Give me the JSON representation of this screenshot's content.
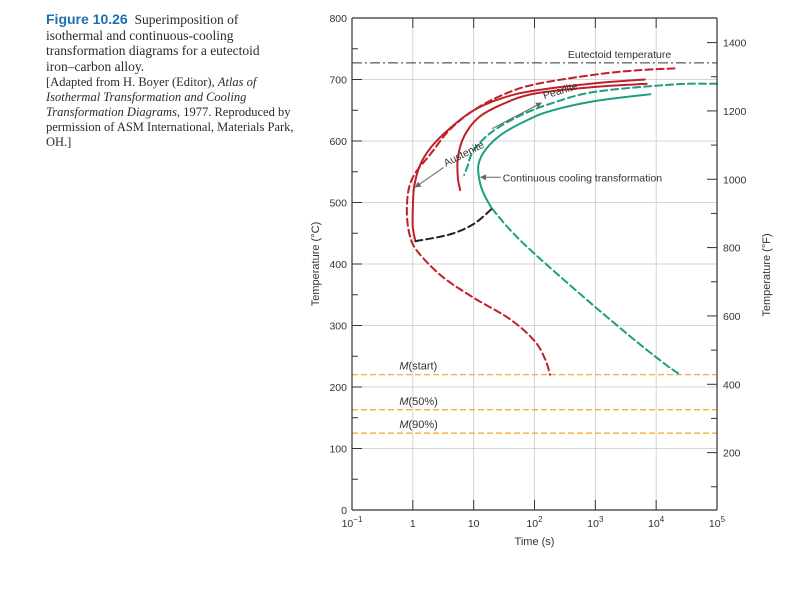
{
  "caption": {
    "figure_label": "Figure 10.26",
    "title_lines": [
      "Superimposition of",
      "isothermal and continuous-cooling",
      "transformation diagrams for a eutectoid",
      "iron–carbon alloy."
    ],
    "source_prefix": "[Adapted from H. Boyer (Editor), ",
    "source_italic": "Atlas of Isothermal Transformation and Cooling Transformation Diagrams,",
    "source_suffix": " 1977. Reproduced by permission of ASM International, Materials Park, OH.]"
  },
  "chart_data": {
    "type": "line",
    "xlabel": "Time (s)",
    "ylabel_left": "Temperature (°C)",
    "ylabel_right": "Temperature (°F)",
    "x_scale": "log",
    "xlim": [
      0.1,
      100000
    ],
    "ylim": [
      0,
      800
    ],
    "x_ticks": [
      {
        "value": 0.1,
        "base": "10",
        "exp": "−1"
      },
      {
        "value": 1,
        "base": "1",
        "exp": ""
      },
      {
        "value": 10,
        "base": "10",
        "exp": ""
      },
      {
        "value": 100,
        "base": "10",
        "exp": "2"
      },
      {
        "value": 1000,
        "base": "10",
        "exp": "3"
      },
      {
        "value": 10000,
        "base": "10",
        "exp": "4"
      },
      {
        "value": 100000,
        "base": "10",
        "exp": "5"
      }
    ],
    "y_ticks_left": [
      "0",
      "100",
      "200",
      "300",
      "400",
      "500",
      "600",
      "700",
      "800"
    ],
    "y_ticks_right": [
      {
        "label": "200",
        "value_c": 93.3
      },
      {
        "label": "400",
        "value_c": 204.4
      },
      {
        "label": "600",
        "value_c": 315.6
      },
      {
        "label": "800",
        "value_c": 426.7
      },
      {
        "label": "1000",
        "value_c": 537.8
      },
      {
        "label": "1200",
        "value_c": 648.9
      },
      {
        "label": "1400",
        "value_c": 760
      }
    ],
    "grid": true,
    "colors": {
      "isothermal": "#c0202a",
      "continuous": "#1a9f82",
      "martensite": "#f5a623",
      "black": "#222222",
      "grid": "#c8c8c8",
      "axis": "#333333"
    },
    "eutectoid": {
      "label": "Eutectoid temperature",
      "temperature": 727
    },
    "martensite_lines": [
      {
        "label": "M(start)",
        "temperature": 220
      },
      {
        "label": "M(50%)",
        "temperature": 163
      },
      {
        "label": "M(90%)",
        "temperature": 125
      }
    ],
    "annotations": [
      {
        "label": "Pearlite"
      },
      {
        "label": "Austenite"
      },
      {
        "label": "Continuous cooling transformation"
      }
    ],
    "series": [
      {
        "id": "iso-start-dashed",
        "dashed": true,
        "color_key": "isothermal",
        "points": [
          [
            20000,
            718
          ],
          [
            5000,
            715
          ],
          [
            1000,
            708
          ],
          [
            100,
            692
          ],
          [
            30,
            675
          ],
          [
            10,
            650
          ],
          [
            4,
            618
          ],
          [
            2,
            580
          ],
          [
            1.1,
            548
          ],
          [
            0.85,
            520
          ],
          [
            0.8,
            480
          ],
          [
            0.9,
            445
          ],
          [
            1.2,
            420
          ],
          [
            3,
            380
          ],
          [
            10,
            345
          ],
          [
            40,
            310
          ],
          [
            100,
            275
          ],
          [
            150,
            245
          ],
          [
            180,
            220
          ]
        ]
      },
      {
        "id": "iso-start-solid",
        "dashed": false,
        "color_key": "isothermal",
        "points": [
          [
            6500,
            700
          ],
          [
            1000,
            694
          ],
          [
            100,
            682
          ],
          [
            30,
            670
          ],
          [
            10,
            650
          ],
          [
            4,
            620
          ],
          [
            2,
            590
          ],
          [
            1.3,
            560
          ],
          [
            1.05,
            525
          ],
          [
            1,
            490
          ],
          [
            1,
            460
          ],
          [
            1.1,
            437
          ]
        ]
      },
      {
        "id": "iso-finish",
        "dashed": false,
        "color_key": "isothermal",
        "points": [
          [
            7000,
            693
          ],
          [
            1000,
            688
          ],
          [
            100,
            677
          ],
          [
            30,
            660
          ],
          [
            12,
            638
          ],
          [
            7,
            608
          ],
          [
            5.5,
            573
          ],
          [
            5.5,
            540
          ],
          [
            6,
            520
          ]
        ]
      },
      {
        "id": "cct-start-dashed",
        "dashed": true,
        "color_key": "continuous",
        "points": [
          [
            100000,
            693
          ],
          [
            20000,
            692
          ],
          [
            1000,
            680
          ],
          [
            200,
            662
          ],
          [
            60,
            642
          ],
          [
            20,
            615
          ],
          [
            10,
            585
          ],
          [
            8,
            560
          ],
          [
            7,
            545
          ]
        ]
      },
      {
        "id": "cct-finish-solid",
        "dashed": false,
        "color_key": "continuous",
        "points": [
          [
            8000,
            676
          ],
          [
            1000,
            665
          ],
          [
            200,
            650
          ],
          [
            80,
            635
          ],
          [
            30,
            612
          ],
          [
            16,
            587
          ],
          [
            12,
            562
          ],
          [
            12.5,
            535
          ],
          [
            15,
            512
          ],
          [
            20,
            490
          ]
        ]
      },
      {
        "id": "cct-lower-dashed",
        "dashed": true,
        "color_key": "continuous",
        "points": [
          [
            20,
            490
          ],
          [
            50,
            445
          ],
          [
            200,
            390
          ],
          [
            1000,
            330
          ],
          [
            5000,
            272
          ],
          [
            15000,
            235
          ],
          [
            25000,
            220
          ]
        ]
      },
      {
        "id": "cct-black-dashed",
        "dashed": true,
        "color_key": "black",
        "points": [
          [
            1.1,
            437
          ],
          [
            4,
            448
          ],
          [
            10,
            465
          ],
          [
            20,
            490
          ]
        ]
      }
    ]
  }
}
